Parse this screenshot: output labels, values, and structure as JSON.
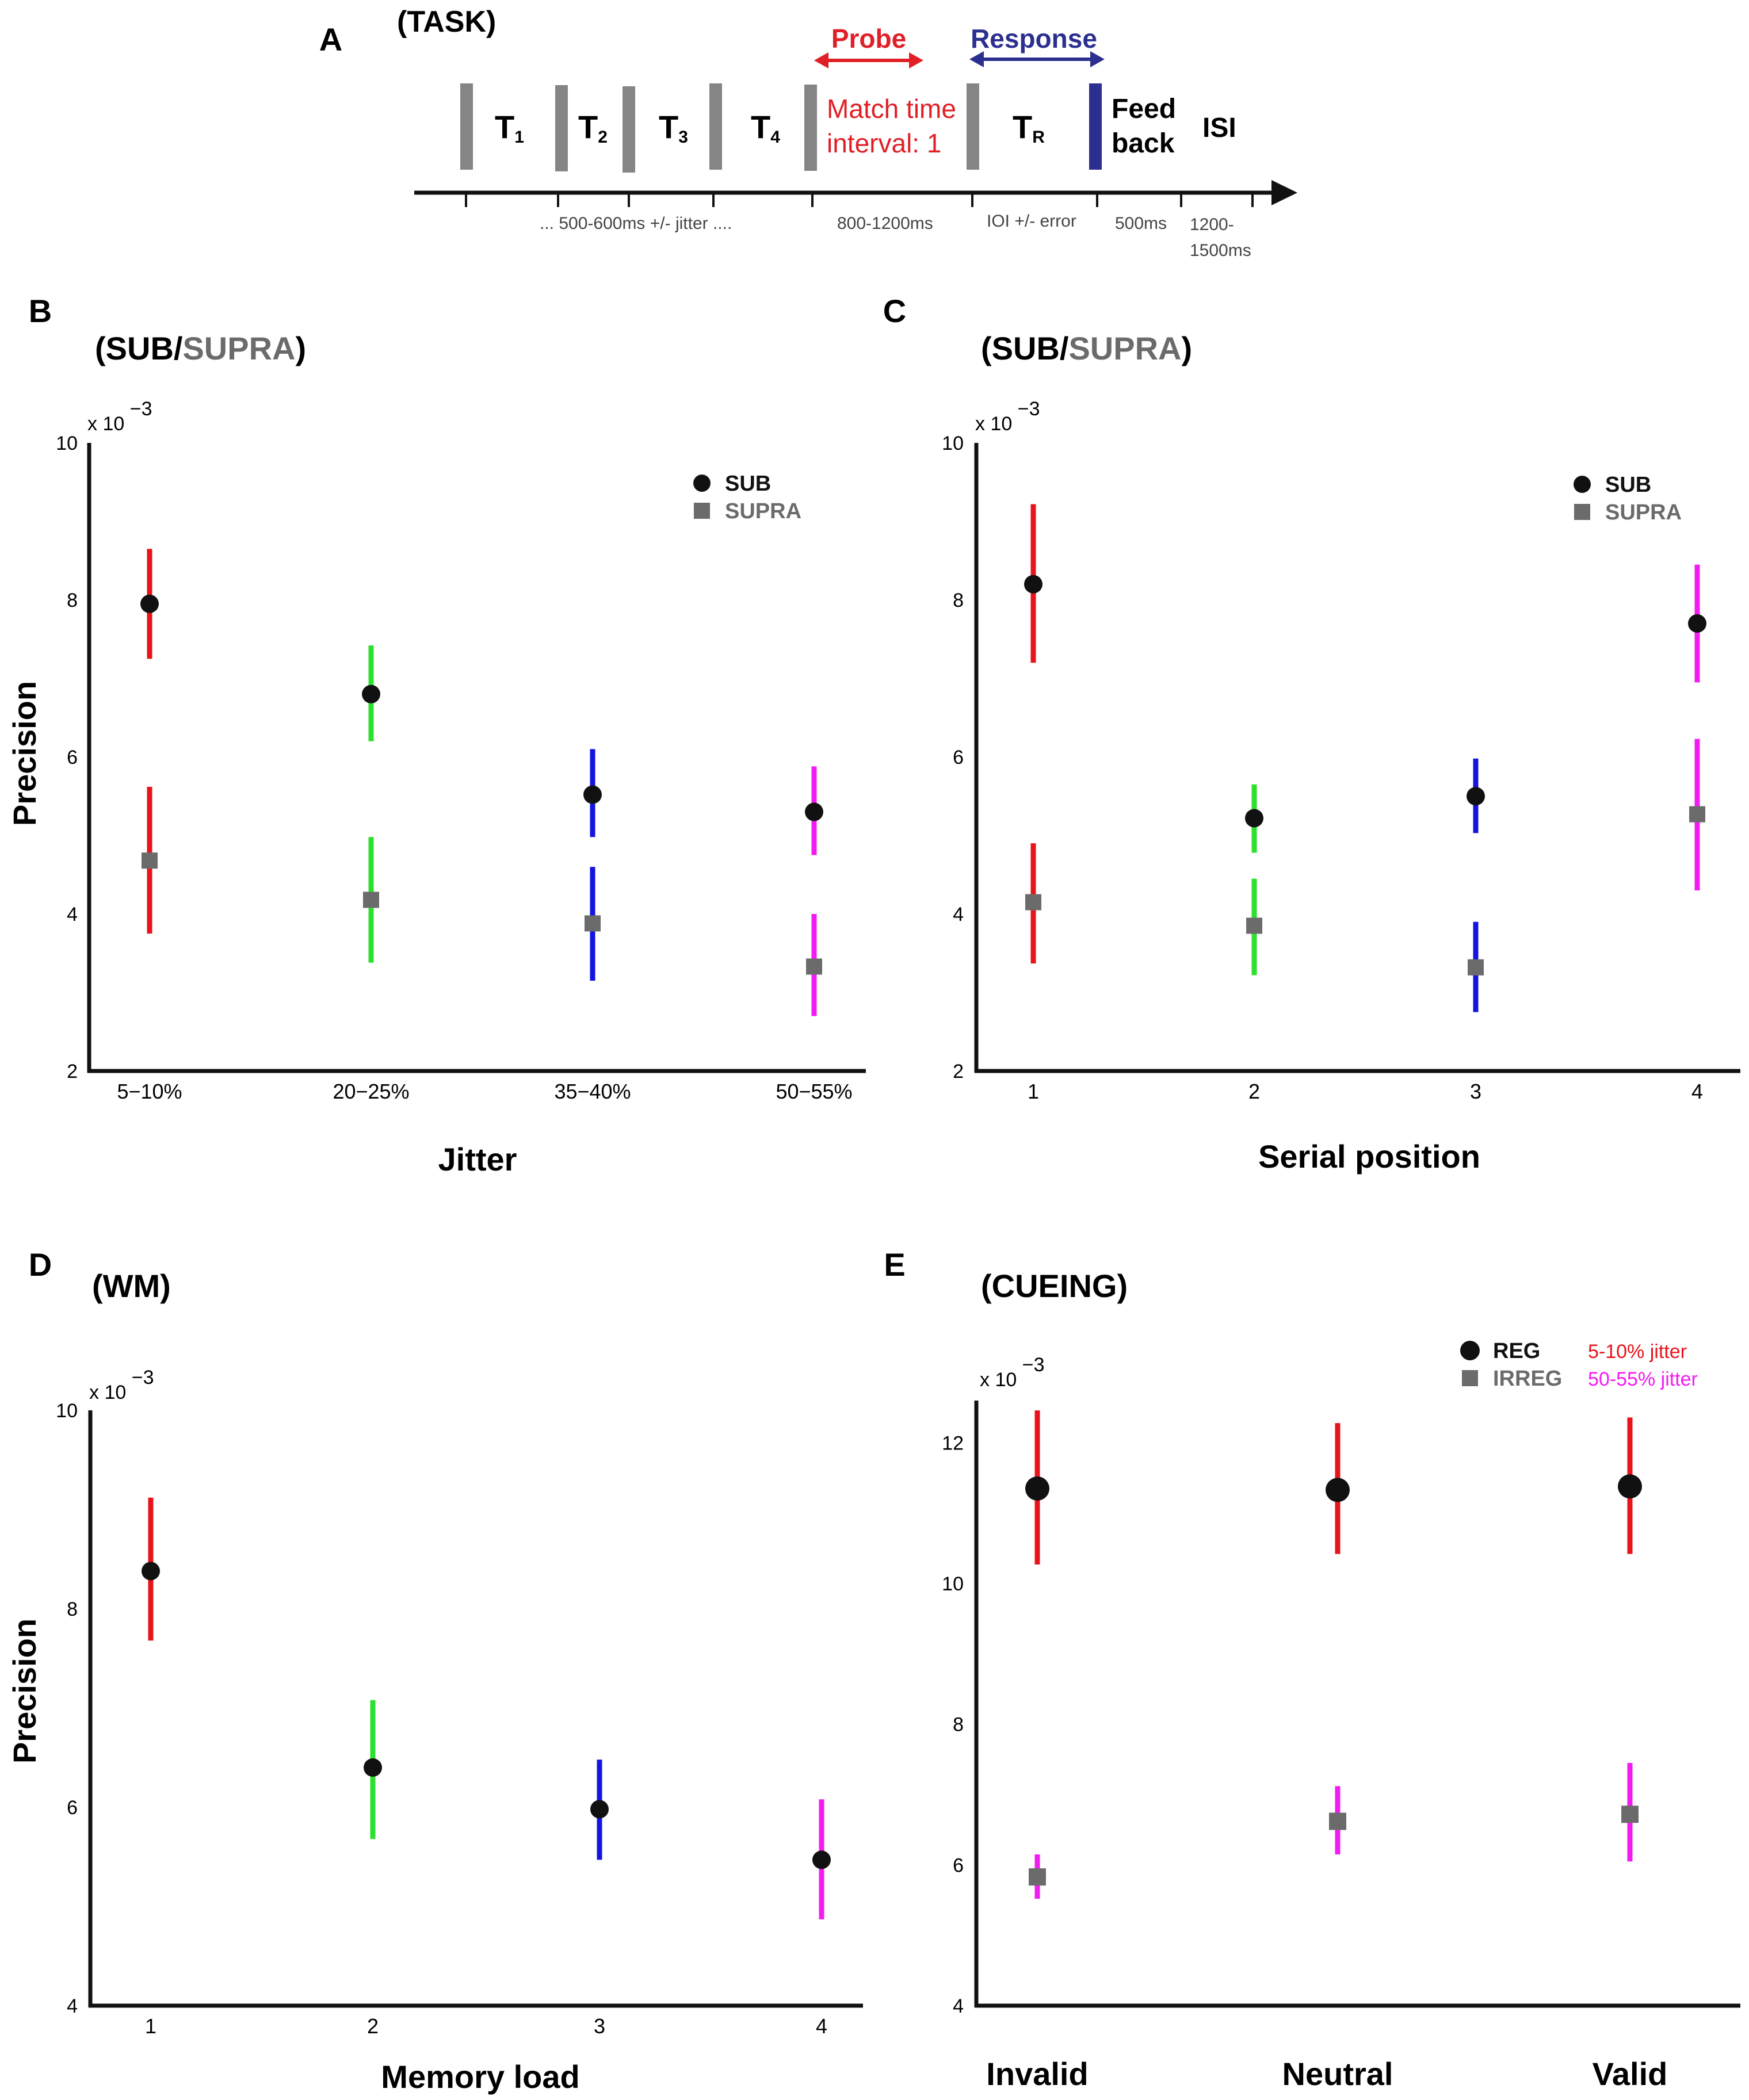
{
  "colors": {
    "red": "#e8141b",
    "green": "#2ee02e",
    "blue": "#1414e0",
    "magenta": "#f21cf2",
    "gray": "#6b6b6b",
    "black": "#111111",
    "navy": "#2b2f8f",
    "probe": "#e01f26",
    "blockGray": "#858585"
  },
  "task": {
    "panel_letter": "A",
    "title": "(TASK)",
    "t1": "T",
    "t1_sub": "1",
    "t2": "T",
    "t2_sub": "2",
    "t3": "T",
    "t3_sub": "3",
    "t4": "T",
    "t4_sub": "4",
    "tr": "T",
    "tr_sub": "R",
    "probe_label": "Probe",
    "response_label": "Response",
    "match_line1": "Match time",
    "match_line2": "interval: 1",
    "feedback_line1": "Feed",
    "feedback_line2": "back",
    "isi": "ISI",
    "timing_tones": "... 500-600ms +/- jitter ....",
    "timing_probe": "800-1200ms",
    "timing_response": "IOI +/- error",
    "timing_feedback": "500ms",
    "timing_isi_line1": "1200-",
    "timing_isi_line2": "1500ms"
  },
  "chart_data": [
    {
      "panel": "B",
      "type": "scatter",
      "title_prefix": "(SUB/",
      "title_highlight": "SUPRA",
      "title_suffix": ")",
      "multiplier": "x 10",
      "multiplier_exp": "−3",
      "ylabel": "Precision",
      "xlabel": "Jitter",
      "categories": [
        "5−10%",
        "20−25%",
        "35−40%",
        "50−55%"
      ],
      "ylim": [
        2,
        10
      ],
      "yticks": [
        2,
        4,
        6,
        8,
        10
      ],
      "cat_colors": [
        "red",
        "green",
        "blue",
        "magenta"
      ],
      "legend": {
        "position": "top-right",
        "entries": [
          {
            "label": "SUB",
            "marker": "circle"
          },
          {
            "label": "SUPRA",
            "marker": "square"
          }
        ]
      },
      "series": [
        {
          "name": "SUB",
          "marker": "circle",
          "values": [
            7.95,
            6.8,
            5.52,
            5.3
          ],
          "lower": [
            7.25,
            6.2,
            4.98,
            4.75
          ],
          "upper": [
            8.65,
            7.42,
            6.1,
            5.88
          ]
        },
        {
          "name": "SUPRA",
          "marker": "square",
          "values": [
            4.68,
            4.18,
            3.88,
            3.33
          ],
          "lower": [
            3.75,
            3.38,
            3.15,
            2.7
          ],
          "upper": [
            5.62,
            4.98,
            4.6,
            4.0
          ]
        }
      ]
    },
    {
      "panel": "C",
      "type": "scatter",
      "title_prefix": "(SUB/",
      "title_highlight": "SUPRA",
      "title_suffix": ")",
      "multiplier": "x 10",
      "multiplier_exp": "−3",
      "ylabel": "",
      "xlabel": "Serial position",
      "categories": [
        "1",
        "2",
        "3",
        "4"
      ],
      "ylim": [
        2,
        10
      ],
      "yticks": [
        2,
        4,
        6,
        8,
        10
      ],
      "cat_colors": [
        "red",
        "green",
        "blue",
        "magenta"
      ],
      "legend": {
        "position": "top-right",
        "entries": [
          {
            "label": "SUB",
            "marker": "circle"
          },
          {
            "label": "SUPRA",
            "marker": "square"
          }
        ]
      },
      "series": [
        {
          "name": "SUB",
          "marker": "circle",
          "values": [
            8.2,
            5.22,
            5.5,
            7.7
          ],
          "lower": [
            7.2,
            4.78,
            5.03,
            6.95
          ],
          "upper": [
            9.22,
            5.65,
            5.98,
            8.45
          ]
        },
        {
          "name": "SUPRA",
          "marker": "square",
          "values": [
            4.15,
            3.85,
            3.32,
            5.27
          ],
          "lower": [
            3.37,
            3.22,
            2.75,
            4.3
          ],
          "upper": [
            4.9,
            4.45,
            3.9,
            6.23
          ]
        }
      ]
    },
    {
      "panel": "D",
      "type": "scatter",
      "title": "(WM)",
      "multiplier": "x 10",
      "multiplier_exp": "−3",
      "ylabel": "Precision",
      "xlabel": "Memory load",
      "categories": [
        "1",
        "2",
        "3",
        "4"
      ],
      "ylim": [
        4,
        10
      ],
      "yticks": [
        4,
        6,
        8,
        10
      ],
      "cat_colors": [
        "red",
        "green",
        "blue",
        "magenta"
      ],
      "series": [
        {
          "name": "WM",
          "marker": "circle",
          "values": [
            8.38,
            6.4,
            5.98,
            5.47
          ],
          "lower": [
            7.68,
            5.68,
            5.47,
            4.87
          ],
          "upper": [
            9.12,
            7.08,
            6.48,
            6.08
          ]
        }
      ]
    },
    {
      "panel": "E",
      "type": "scatter",
      "title": "(CUEING)",
      "multiplier": "x 10",
      "multiplier_exp": "−3",
      "ylabel": "",
      "xlabel": "",
      "categories": [
        "Invalid",
        "Neutral",
        "Valid"
      ],
      "ylim": [
        4,
        12.6
      ],
      "yticks": [
        4,
        6,
        8,
        10,
        12
      ],
      "legend": {
        "position": "top-right",
        "entries": [
          {
            "label": "REG",
            "marker": "circle",
            "note": "5-10% jitter",
            "note_color": "red"
          },
          {
            "label": "IRREG",
            "marker": "square",
            "note": "50-55% jitter",
            "note_color": "magenta"
          }
        ]
      },
      "series": [
        {
          "name": "REG",
          "marker": "circle",
          "color": "red",
          "values": [
            11.35,
            11.33,
            11.38
          ],
          "lower": [
            10.27,
            10.42,
            10.42
          ],
          "upper": [
            12.46,
            12.28,
            12.36
          ]
        },
        {
          "name": "IRREG",
          "marker": "square",
          "color": "magenta",
          "values": [
            5.83,
            6.62,
            6.72
          ],
          "lower": [
            5.52,
            6.15,
            6.05
          ],
          "upper": [
            6.15,
            7.12,
            7.45
          ]
        }
      ]
    }
  ]
}
